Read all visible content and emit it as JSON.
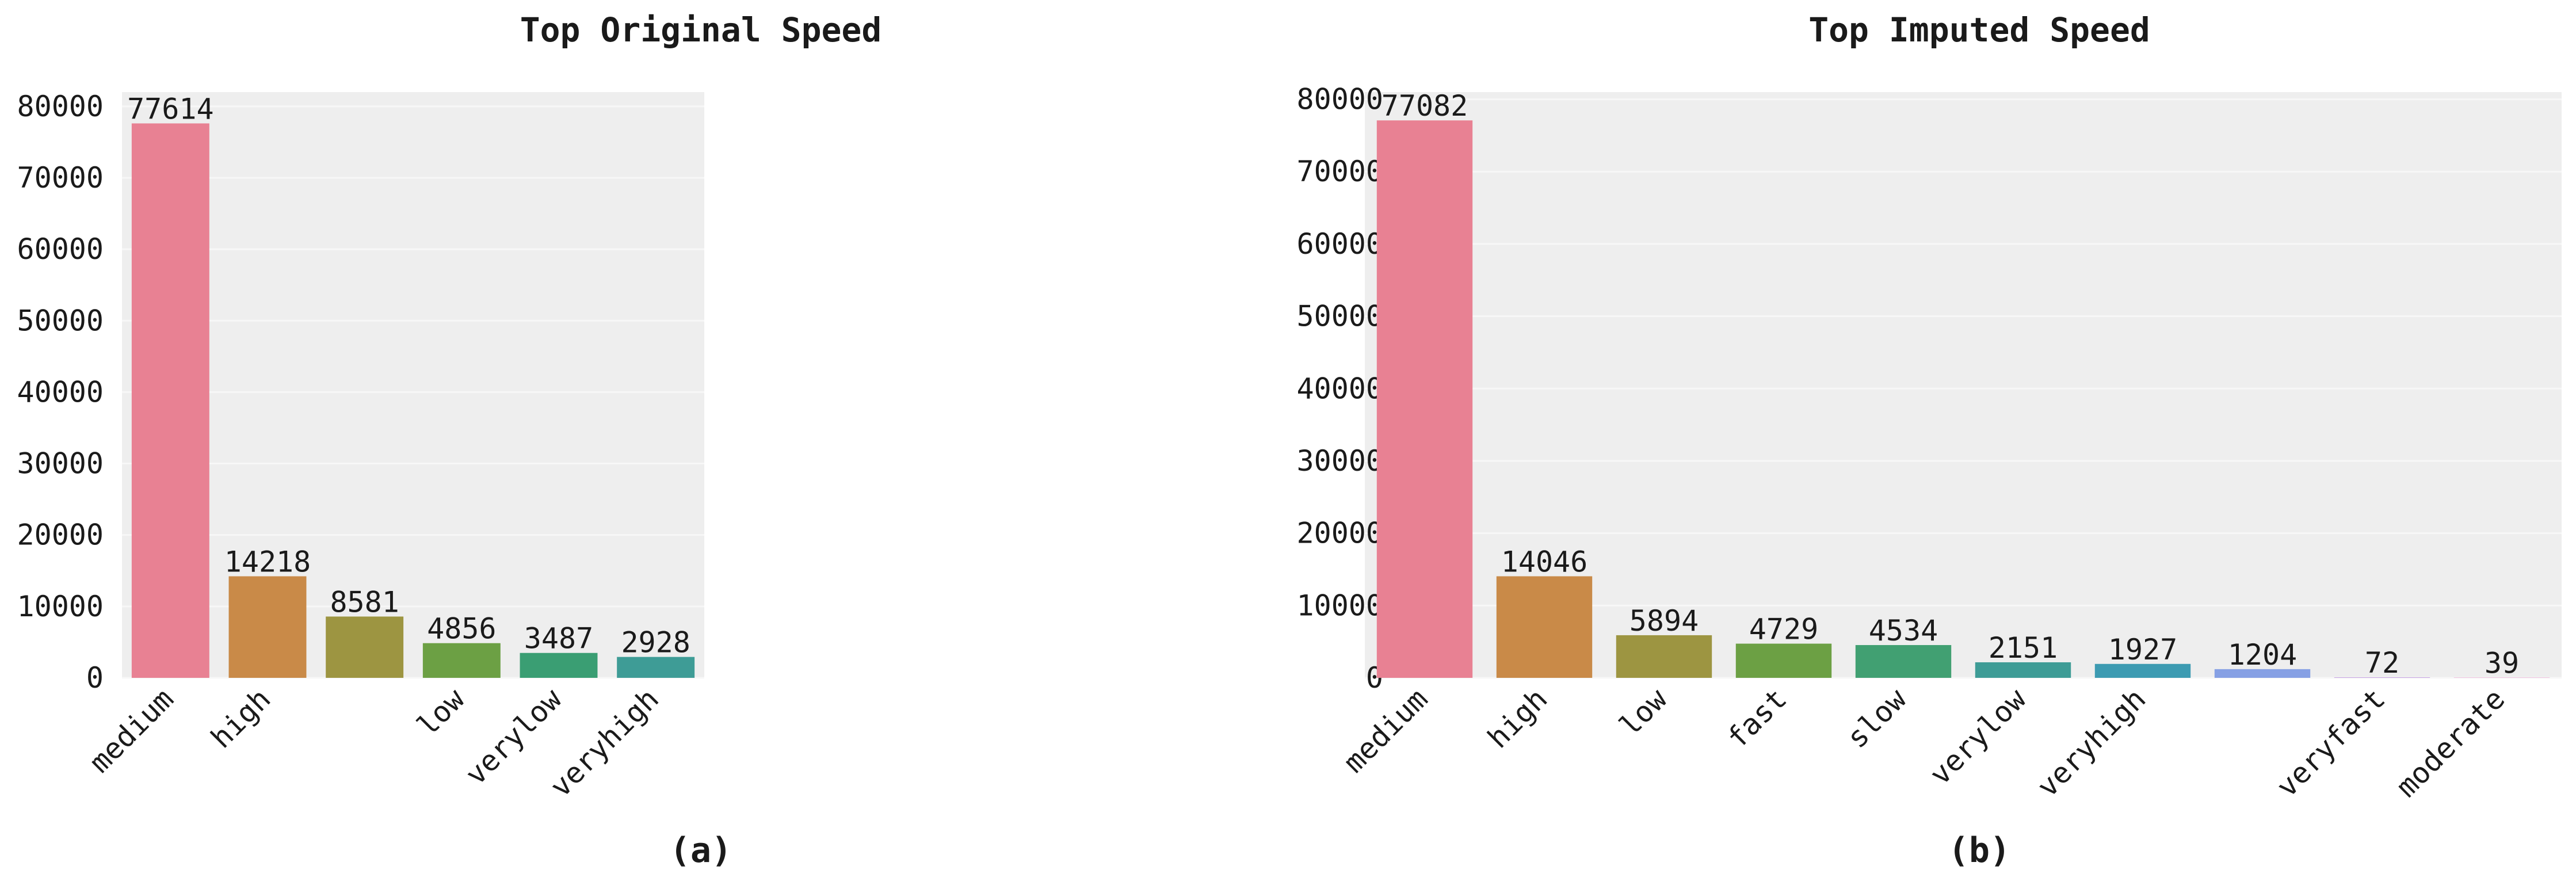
{
  "chart_data": [
    {
      "type": "bar",
      "title": "Top Original Speed",
      "caption": "(a)",
      "categories": [
        "medium",
        "high",
        "",
        "low",
        "verylow",
        "veryhigh"
      ],
      "values": [
        77614,
        14218,
        8581,
        4856,
        3487,
        2928
      ],
      "colors": [
        "#e88193",
        "#c98a48",
        "#9d9541",
        "#6ca044",
        "#3a9e73",
        "#3e9c96"
      ],
      "ylim": [
        0,
        82000
      ],
      "yticks": [
        0,
        10000,
        20000,
        30000,
        40000,
        50000,
        60000,
        70000,
        80000
      ],
      "xlabel": "",
      "ylabel": "",
      "grid": true
    },
    {
      "type": "bar",
      "title": "Top Imputed Speed",
      "caption": "(b)",
      "categories": [
        "medium",
        "high",
        "low",
        "fast",
        "slow",
        "verylow",
        "veryhigh",
        "",
        "veryfast",
        "moderate"
      ],
      "values": [
        77082,
        14046,
        5894,
        4729,
        4534,
        2151,
        1927,
        1204,
        72,
        39
      ],
      "colors": [
        "#e88193",
        "#c98a48",
        "#9d9541",
        "#6ca044",
        "#41a072",
        "#3e9c96",
        "#3d9bb2",
        "#86a0e4",
        "#c09ae0",
        "#e58fc8"
      ],
      "ylim": [
        0,
        81000
      ],
      "yticks": [
        0,
        10000,
        20000,
        30000,
        40000,
        50000,
        60000,
        70000,
        80000
      ],
      "xlabel": "",
      "ylabel": "",
      "grid": true
    }
  ]
}
